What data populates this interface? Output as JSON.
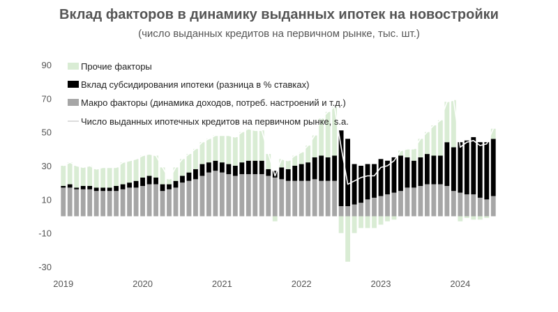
{
  "chart_data": {
    "type": "bar",
    "title": "Вклад факторов в динамику выданных ипотек на новостройки",
    "subtitle": "(число выданных кредитов на первичном рынке, тыс. шт.)",
    "ylim": [
      -30,
      90
    ],
    "yticks": [
      "90",
      "70",
      "50",
      "30",
      "10",
      "-10",
      "-30"
    ],
    "ytick_values": [
      90,
      70,
      50,
      30,
      10,
      -10,
      -30
    ],
    "xticks": [
      "2019",
      "2020",
      "2021",
      "2022",
      "2023",
      "2024"
    ],
    "xtick_positions": [
      0,
      12,
      24,
      36,
      48,
      60
    ],
    "legend_position": "top-left",
    "colors": {
      "other": "#d9ecd4",
      "subsidy": "#000000",
      "macro": "#a6a6a6",
      "line": "#ffffff"
    },
    "series": [
      {
        "name": "Прочие факторы",
        "kind": "stack",
        "values": [
          12,
          13,
          13,
          11,
          12,
          11,
          12,
          12,
          11,
          13,
          13,
          13,
          13,
          13,
          13,
          10,
          3,
          8,
          10,
          11,
          12,
          13,
          14,
          15,
          16,
          17,
          17,
          18,
          19,
          18,
          18,
          9,
          -3,
          5,
          5,
          6,
          7,
          10,
          13,
          22,
          27,
          29,
          -10,
          -27,
          -10,
          -7,
          -7,
          -7,
          -5,
          -3,
          -2,
          3,
          5,
          7,
          11,
          13,
          18,
          21,
          24,
          28,
          -3,
          -1,
          -2,
          -2,
          -1,
          6
        ]
      },
      {
        "name": "Вклад субсидирования ипотеки (разница в % ставках)",
        "kind": "stack",
        "values": [
          1,
          2,
          1,
          2,
          2,
          2,
          2,
          2,
          3,
          3,
          3,
          4,
          5,
          5,
          4,
          4,
          3,
          4,
          4,
          5,
          6,
          7,
          6,
          6,
          6,
          6,
          6,
          7,
          8,
          8,
          8,
          4,
          4,
          7,
          7,
          9,
          10,
          11,
          13,
          15,
          14,
          15,
          45,
          40,
          24,
          22,
          21,
          20,
          22,
          20,
          21,
          21,
          18,
          16,
          17,
          18,
          17,
          17,
          26,
          26,
          30,
          32,
          34,
          33,
          34,
          34
        ]
      },
      {
        "name": "Макро факторы (динамика доходов, потреб. настроений и т.д.)",
        "kind": "stack",
        "values": [
          17,
          17,
          16,
          16,
          16,
          15,
          15,
          15,
          15,
          16,
          17,
          17,
          18,
          19,
          19,
          15,
          16,
          17,
          20,
          21,
          22,
          24,
          26,
          27,
          26,
          25,
          24,
          25,
          25,
          25,
          25,
          24,
          23,
          22,
          21,
          21,
          21,
          21,
          22,
          21,
          21,
          21,
          6,
          6,
          7,
          8,
          10,
          11,
          12,
          13,
          14,
          15,
          17,
          17,
          18,
          19,
          19,
          19,
          18,
          15,
          14,
          13,
          13,
          11,
          10,
          12
        ]
      },
      {
        "name": "Число выданных ипотечных кредитов на первичном рынке, s.a.",
        "kind": "line",
        "values": [
          30,
          32,
          30,
          29,
          30,
          28,
          29,
          29,
          29,
          32,
          33,
          34,
          36,
          37,
          36,
          29,
          22,
          29,
          34,
          37,
          40,
          44,
          46,
          48,
          48,
          48,
          47,
          50,
          52,
          51,
          51,
          37,
          24,
          34,
          33,
          36,
          38,
          42,
          48,
          58,
          62,
          65,
          41,
          19,
          21,
          23,
          24,
          24,
          29,
          30,
          33,
          39,
          40,
          40,
          46,
          50,
          54,
          57,
          68,
          69,
          41,
          44,
          45,
          42,
          43,
          52
        ]
      }
    ]
  }
}
